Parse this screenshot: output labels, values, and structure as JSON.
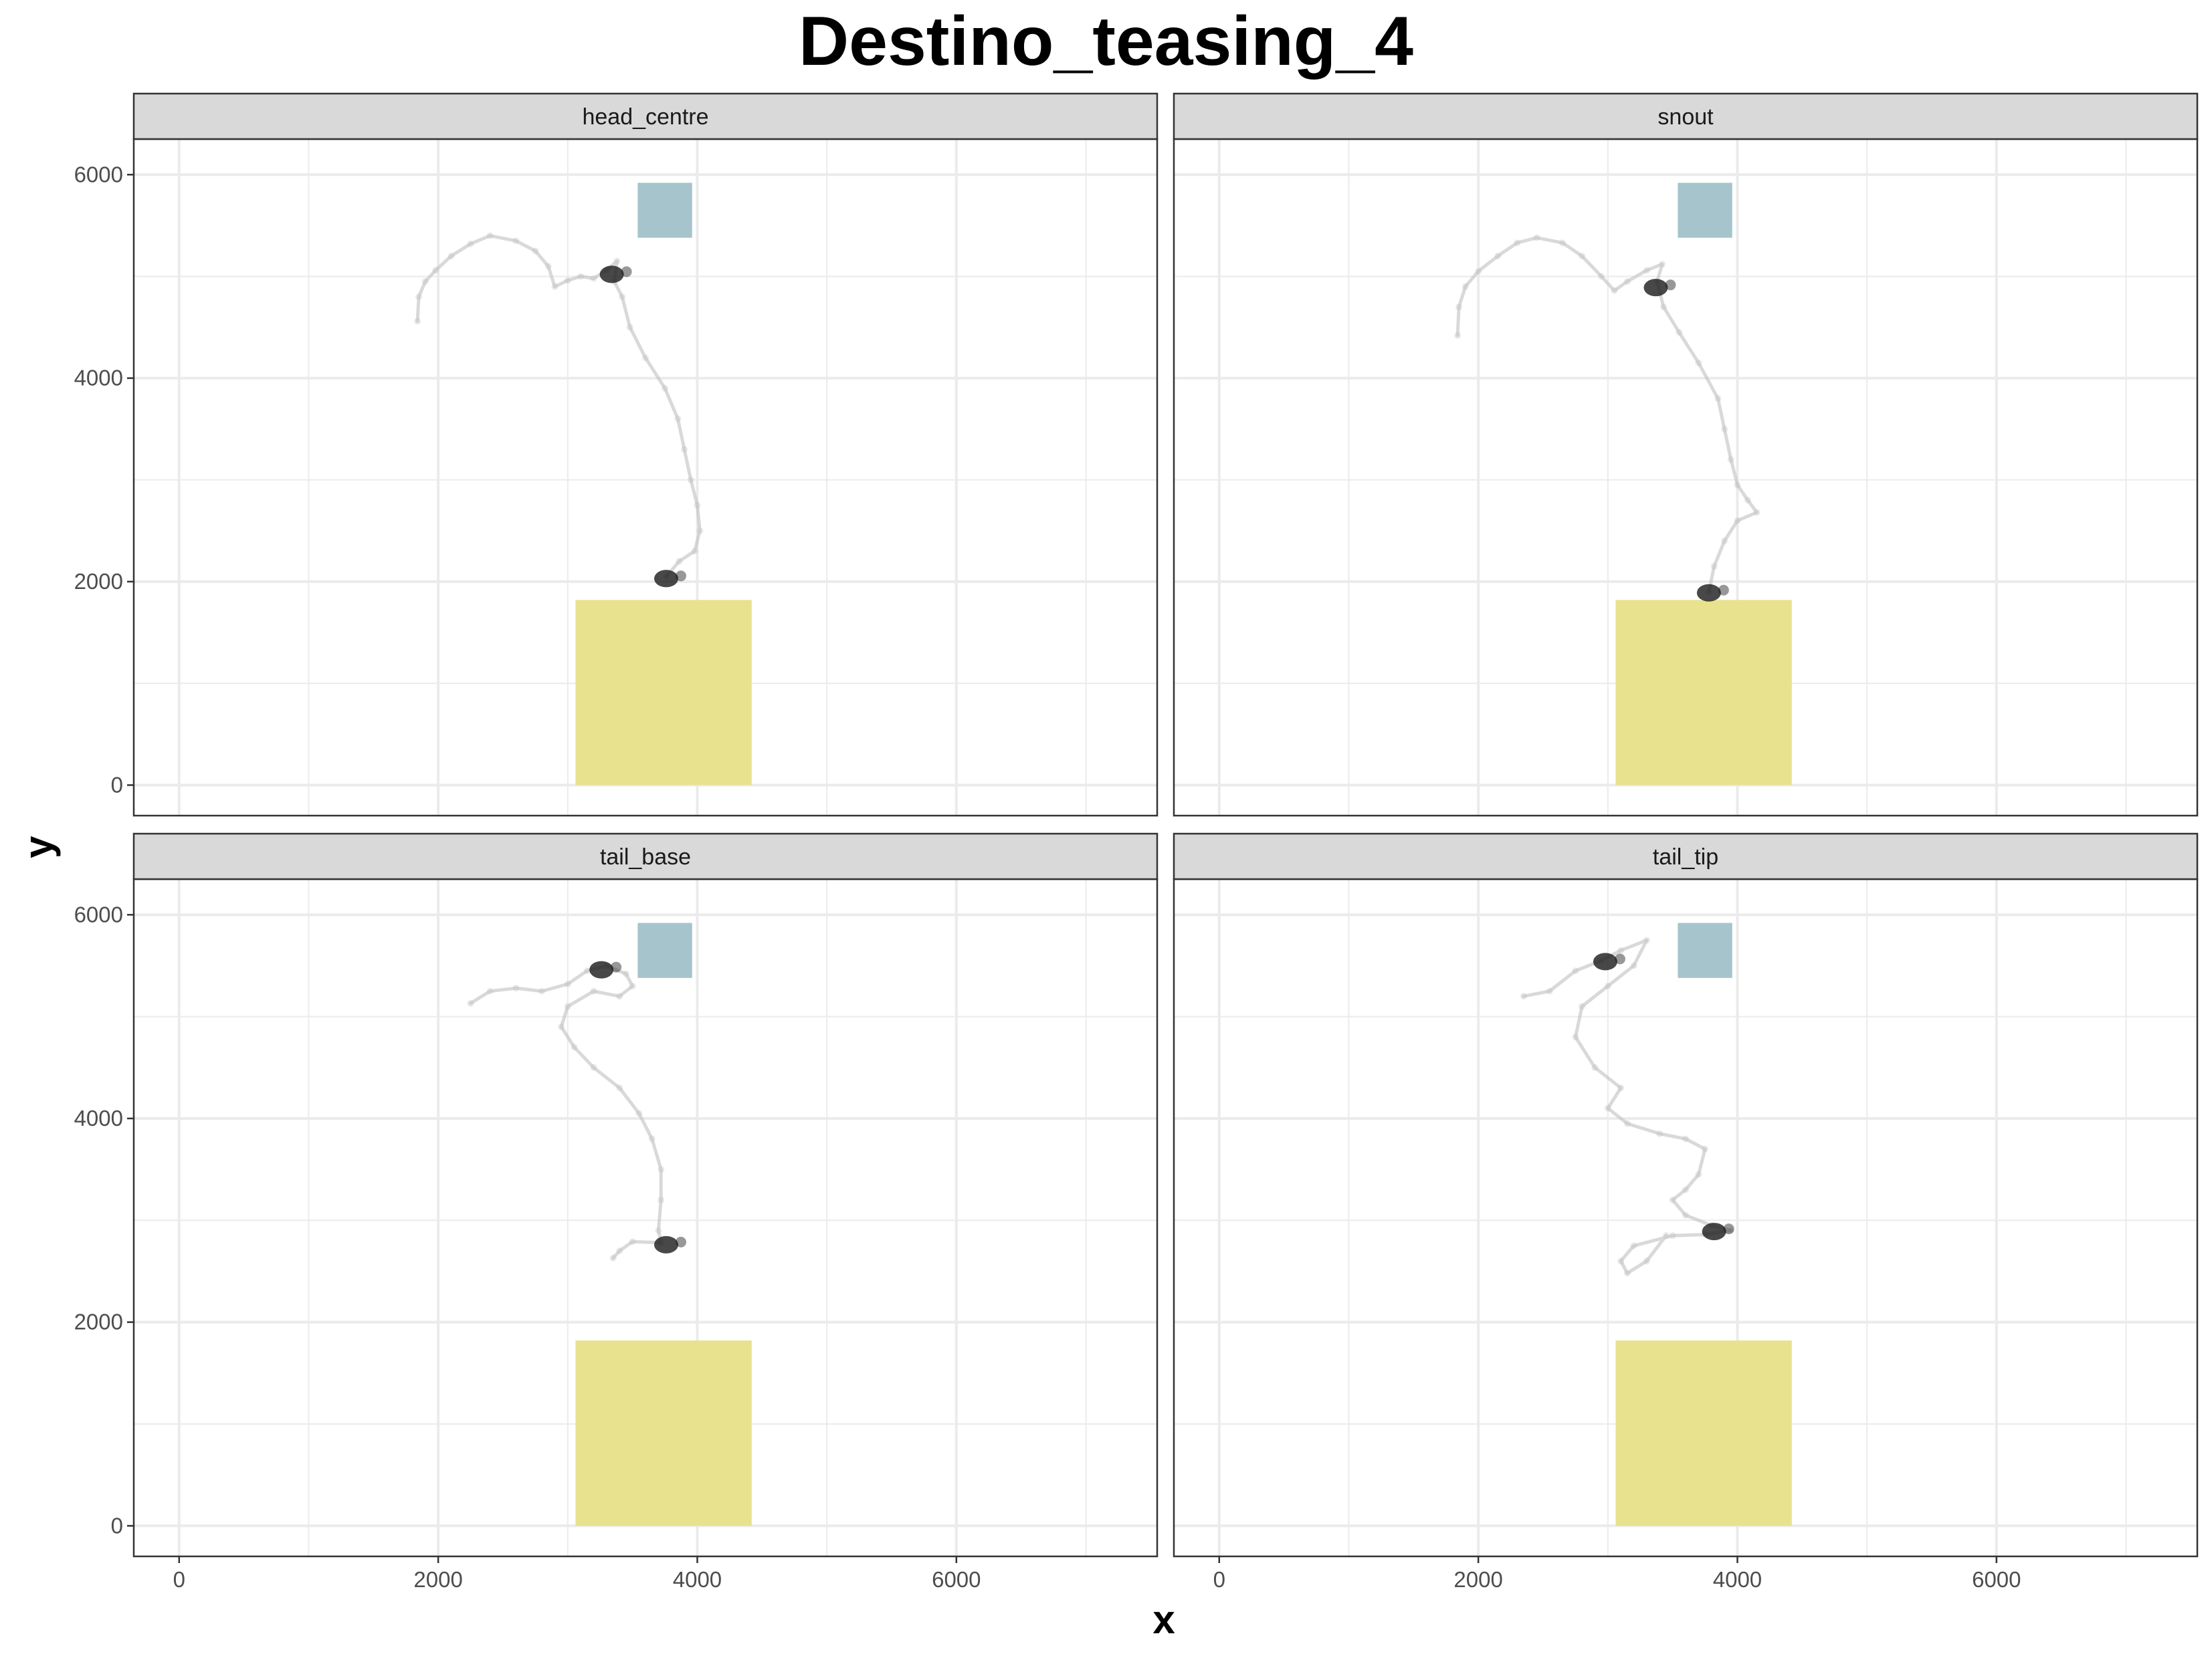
{
  "chart_data": {
    "type": "scatter",
    "title": "Destino_teasing_4",
    "xlabel": "x",
    "ylabel": "y",
    "xlim": [
      -350,
      7550
    ],
    "ylim": [
      -300,
      6350
    ],
    "x_ticks": [
      0,
      2000,
      4000,
      6000
    ],
    "y_ticks": [
      0,
      2000,
      4000,
      6000
    ],
    "grid": true,
    "facet_layout": "2x2",
    "colors": {
      "zone_large": "#e8e28f",
      "zone_small": "#a6c4cb",
      "track": "#bfbfbf",
      "cluster": "#1a1a1a",
      "strip_bg": "#d9d9d9",
      "grid": "#ebebeb"
    },
    "zones": {
      "large": {
        "x": [
          3060,
          4420
        ],
        "y": [
          0,
          1820
        ]
      },
      "small": {
        "x": [
          3540,
          3960
        ],
        "y": [
          5380,
          5920
        ]
      }
    },
    "panels": [
      {
        "label": "head_centre",
        "track": [
          [
            1840,
            4560
          ],
          [
            1850,
            4800
          ],
          [
            1900,
            4950
          ],
          [
            1980,
            5060
          ],
          [
            2100,
            5200
          ],
          [
            2250,
            5320
          ],
          [
            2400,
            5400
          ],
          [
            2600,
            5350
          ],
          [
            2750,
            5250
          ],
          [
            2850,
            5100
          ],
          [
            2900,
            4900
          ],
          [
            3000,
            4960
          ],
          [
            3100,
            5000
          ],
          [
            3200,
            4980
          ],
          [
            3300,
            5060
          ],
          [
            3380,
            5150
          ],
          [
            3360,
            4950
          ],
          [
            3420,
            4800
          ],
          [
            3480,
            4500
          ],
          [
            3600,
            4200
          ],
          [
            3750,
            3900
          ],
          [
            3850,
            3600
          ],
          [
            3900,
            3300
          ],
          [
            3950,
            3000
          ],
          [
            4000,
            2750
          ],
          [
            4020,
            2500
          ],
          [
            3980,
            2300
          ],
          [
            3860,
            2200
          ],
          [
            3760,
            2050
          ]
        ],
        "clusters": [
          [
            3340,
            5020
          ],
          [
            3760,
            2030
          ]
        ]
      },
      {
        "label": "snout",
        "track": [
          [
            1840,
            4420
          ],
          [
            1850,
            4700
          ],
          [
            1900,
            4900
          ],
          [
            2000,
            5050
          ],
          [
            2150,
            5200
          ],
          [
            2300,
            5330
          ],
          [
            2450,
            5380
          ],
          [
            2650,
            5330
          ],
          [
            2800,
            5200
          ],
          [
            2950,
            5000
          ],
          [
            3050,
            4860
          ],
          [
            3150,
            4950
          ],
          [
            3300,
            5060
          ],
          [
            3420,
            5120
          ],
          [
            3380,
            4950
          ],
          [
            3430,
            4700
          ],
          [
            3550,
            4450
          ],
          [
            3700,
            4150
          ],
          [
            3850,
            3800
          ],
          [
            3900,
            3500
          ],
          [
            3950,
            3200
          ],
          [
            4000,
            2950
          ],
          [
            4080,
            2800
          ],
          [
            4150,
            2680
          ],
          [
            4000,
            2600
          ],
          [
            3900,
            2400
          ],
          [
            3820,
            2150
          ],
          [
            3780,
            1900
          ]
        ],
        "clusters": [
          [
            3370,
            4890
          ],
          [
            3780,
            1890
          ]
        ]
      },
      {
        "label": "tail_base",
        "track": [
          [
            2250,
            5130
          ],
          [
            2400,
            5250
          ],
          [
            2600,
            5280
          ],
          [
            2800,
            5250
          ],
          [
            3000,
            5320
          ],
          [
            3150,
            5450
          ],
          [
            3300,
            5500
          ],
          [
            3450,
            5420
          ],
          [
            3500,
            5300
          ],
          [
            3400,
            5200
          ],
          [
            3200,
            5250
          ],
          [
            3000,
            5100
          ],
          [
            2950,
            4900
          ],
          [
            3050,
            4700
          ],
          [
            3200,
            4500
          ],
          [
            3400,
            4300
          ],
          [
            3550,
            4050
          ],
          [
            3650,
            3800
          ],
          [
            3720,
            3500
          ],
          [
            3720,
            3200
          ],
          [
            3700,
            2900
          ],
          [
            3720,
            2780
          ],
          [
            3500,
            2790
          ],
          [
            3400,
            2700
          ],
          [
            3350,
            2630
          ]
        ],
        "clusters": [
          [
            3260,
            5460
          ],
          [
            3760,
            2760
          ]
        ]
      },
      {
        "label": "tail_tip",
        "track": [
          [
            2350,
            5200
          ],
          [
            2550,
            5250
          ],
          [
            2750,
            5450
          ],
          [
            2950,
            5550
          ],
          [
            3100,
            5650
          ],
          [
            3300,
            5750
          ],
          [
            3200,
            5500
          ],
          [
            3000,
            5300
          ],
          [
            2800,
            5100
          ],
          [
            2750,
            4800
          ],
          [
            2900,
            4500
          ],
          [
            3100,
            4300
          ],
          [
            3000,
            4100
          ],
          [
            3150,
            3950
          ],
          [
            3400,
            3850
          ],
          [
            3600,
            3800
          ],
          [
            3750,
            3700
          ],
          [
            3700,
            3450
          ],
          [
            3600,
            3300
          ],
          [
            3500,
            3200
          ],
          [
            3600,
            3050
          ],
          [
            3800,
            2950
          ],
          [
            3950,
            2900
          ],
          [
            3750,
            2860
          ],
          [
            3500,
            2850
          ],
          [
            3200,
            2750
          ],
          [
            3100,
            2600
          ],
          [
            3150,
            2480
          ],
          [
            3300,
            2600
          ],
          [
            3450,
            2850
          ]
        ],
        "clusters": [
          [
            2980,
            5540
          ],
          [
            3820,
            2890
          ]
        ]
      }
    ]
  }
}
